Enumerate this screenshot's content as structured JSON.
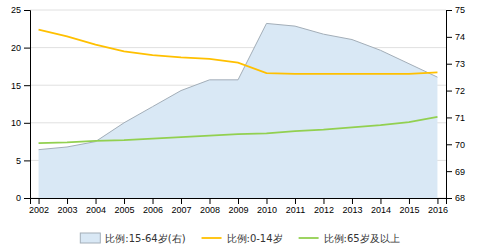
{
  "chart_data": {
    "type": "line",
    "x": [
      2002,
      2003,
      2004,
      2005,
      2006,
      2007,
      2008,
      2009,
      2010,
      2011,
      2012,
      2013,
      2014,
      2015,
      2016
    ],
    "xlim": [
      2001.7,
      2016.3
    ],
    "xticks": [
      2002,
      2003,
      2004,
      2005,
      2006,
      2007,
      2008,
      2009,
      2010,
      2011,
      2012,
      2013,
      2014,
      2015,
      2016
    ],
    "ylim": [
      0,
      25
    ],
    "yticks": [
      0,
      5,
      10,
      15,
      20,
      25
    ],
    "y2lim": [
      68,
      75
    ],
    "y2ticks": [
      68,
      69,
      70,
      71,
      72,
      73,
      74,
      75
    ],
    "grid": true,
    "legend": "bottom",
    "series": [
      {
        "name": "比例:15-64岁(右)",
        "type": "area",
        "axis": "y2",
        "color": "#d9e8f5",
        "values": [
          69.8,
          69.9,
          70.1,
          70.8,
          71.4,
          72.0,
          72.4,
          72.4,
          74.5,
          74.4,
          74.1,
          73.9,
          73.5,
          73.0,
          72.5
        ]
      },
      {
        "name": "比例:0-14岁",
        "type": "line",
        "color": "#ffc000",
        "values": [
          22.4,
          21.5,
          20.4,
          19.5,
          19.0,
          18.7,
          18.5,
          18.0,
          16.6,
          16.5,
          16.5,
          16.5,
          16.5,
          16.5,
          16.7
        ]
      },
      {
        "name": "比例:65岁及以上",
        "type": "line",
        "color": "#92d050",
        "values": [
          7.3,
          7.4,
          7.6,
          7.7,
          7.9,
          8.1,
          8.3,
          8.5,
          8.6,
          8.9,
          9.1,
          9.4,
          9.7,
          10.1,
          10.8
        ]
      }
    ]
  }
}
